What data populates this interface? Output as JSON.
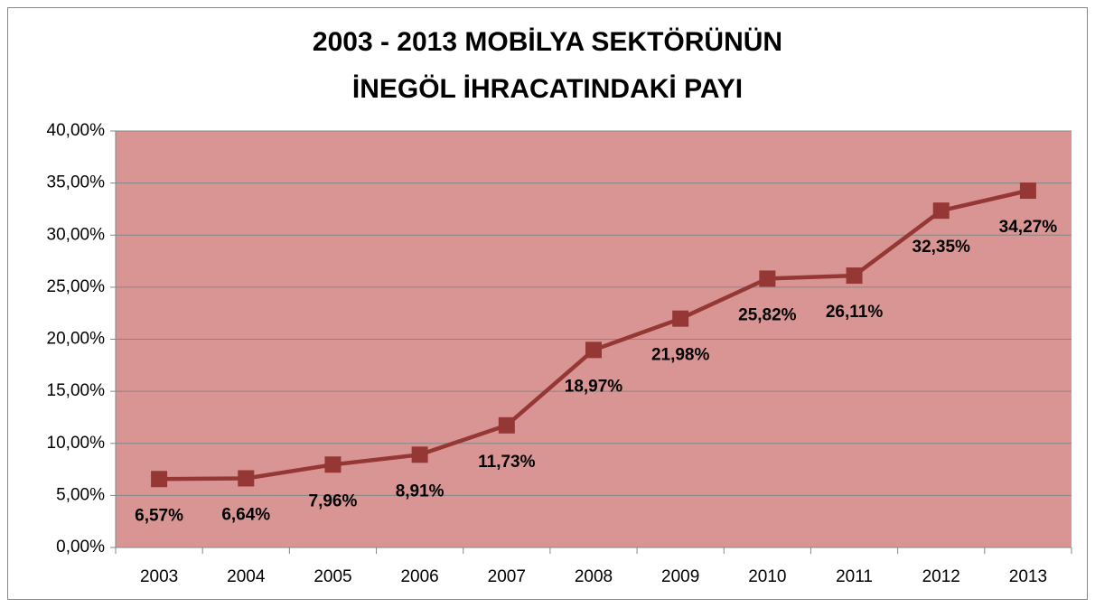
{
  "chart_data": {
    "type": "line",
    "title": [
      "2003 - 2013 MOBİLYA SEKTÖRÜNÜN",
      "İNEGÖL İHRACATINDAKİ PAYI"
    ],
    "categories": [
      "2003",
      "2004",
      "2005",
      "2006",
      "2007",
      "2008",
      "2009",
      "2010",
      "2011",
      "2012",
      "2013"
    ],
    "values": [
      6.57,
      6.64,
      7.96,
      8.91,
      11.73,
      18.97,
      21.98,
      25.82,
      26.11,
      32.35,
      34.27
    ],
    "value_labels": [
      "6,57%",
      "6,64%",
      "7,96%",
      "8,91%",
      "11,73%",
      "18,97%",
      "21,98%",
      "25,82%",
      "26,11%",
      "32,35%",
      "34,27%"
    ],
    "color": "#953735",
    "plot_background": "#d99594",
    "ylim": [
      0,
      40
    ],
    "yticks": [
      {
        "value": 0,
        "label": "0,00%"
      },
      {
        "value": 5,
        "label": "5,00%"
      },
      {
        "value": 10,
        "label": "10,00%"
      },
      {
        "value": 15,
        "label": "15,00%"
      },
      {
        "value": 20,
        "label": "20,00%"
      },
      {
        "value": 25,
        "label": "25,00%"
      },
      {
        "value": 30,
        "label": "30,00%"
      },
      {
        "value": 35,
        "label": "35,00%"
      },
      {
        "value": 40,
        "label": "40,00%"
      }
    ],
    "grid": true
  }
}
